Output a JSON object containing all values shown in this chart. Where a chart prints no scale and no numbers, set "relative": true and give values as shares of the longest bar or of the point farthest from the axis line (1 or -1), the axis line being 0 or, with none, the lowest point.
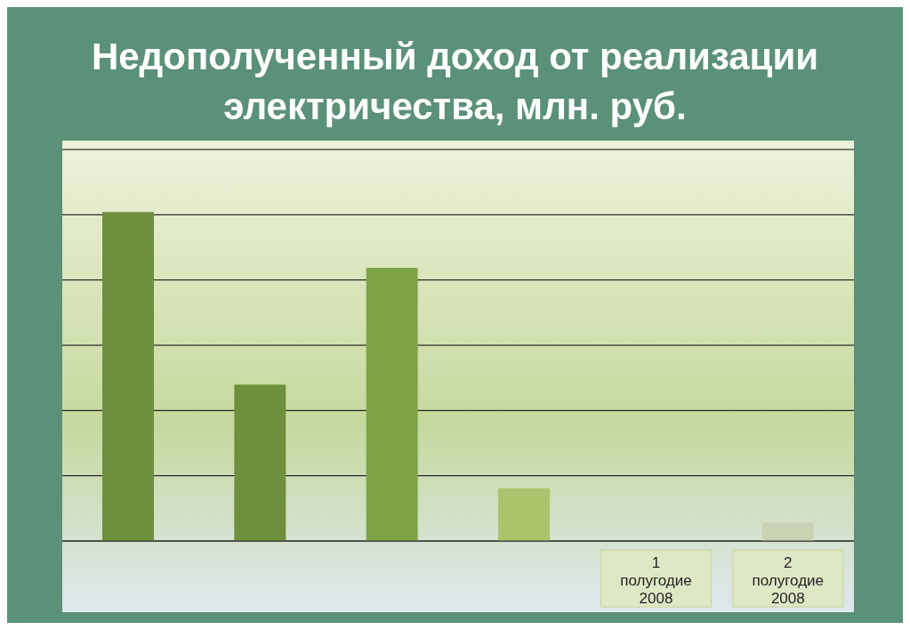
{
  "chart_data": {
    "type": "bar",
    "title": "Недополученный доход от реализации электричества, млн. руб.",
    "categories": [
      null,
      null,
      null,
      null,
      "1 полугодие 2008",
      "2 полугодие 2008"
    ],
    "values": [
      1,
      0.475,
      0.83,
      0.16,
      null,
      0.057
    ],
    "colors": [
      "#6f8f3c",
      "#6f8f3c",
      "#7fa348",
      "#a9c46c",
      "#b8cc8c",
      "#c9d3b4"
    ],
    "relative": true,
    "grid": "y"
  }
}
